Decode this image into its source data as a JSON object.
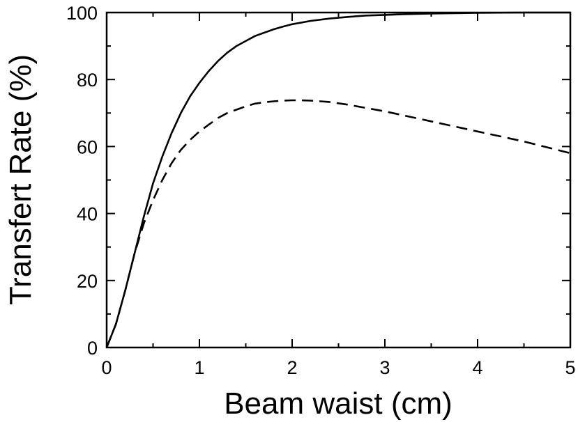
{
  "chart_data": {
    "type": "line",
    "title": "",
    "xlabel": "Beam waist (cm)",
    "ylabel": "Transfert Rate (%)",
    "xlim": [
      0,
      5
    ],
    "ylim": [
      0,
      100
    ],
    "x_ticks": [
      0,
      1,
      2,
      3,
      4,
      5
    ],
    "x_tick_labels": [
      "0",
      "1",
      "2",
      "3",
      "4",
      "5"
    ],
    "y_ticks": [
      0,
      20,
      40,
      60,
      80,
      100
    ],
    "y_tick_labels": [
      "0",
      "20",
      "40",
      "60",
      "80",
      "100"
    ],
    "grid": false,
    "legend": "none",
    "series": [
      {
        "style": "solid",
        "color": "#000000",
        "x": [
          0,
          0.1,
          0.2,
          0.3,
          0.4,
          0.5,
          0.6,
          0.7,
          0.8,
          0.9,
          1.0,
          1.1,
          1.2,
          1.3,
          1.4,
          1.5,
          1.6,
          1.7,
          1.8,
          1.9,
          2.0,
          2.2,
          2.4,
          2.6,
          2.8,
          3.0,
          3.2,
          3.5,
          4.0,
          4.5,
          5.0
        ],
        "y": [
          0,
          7,
          17,
          28,
          39,
          49,
          57,
          64,
          70,
          75,
          79,
          82.5,
          85.5,
          88,
          90,
          91.5,
          93,
          94,
          95,
          95.8,
          96.5,
          97.5,
          98.2,
          98.7,
          99.1,
          99.3,
          99.5,
          99.7,
          99.9,
          100,
          100
        ]
      },
      {
        "style": "dashed",
        "color": "#000000",
        "x": [
          0,
          0.1,
          0.2,
          0.3,
          0.4,
          0.5,
          0.6,
          0.7,
          0.8,
          0.9,
          1.0,
          1.1,
          1.2,
          1.3,
          1.4,
          1.5,
          1.6,
          1.7,
          1.8,
          1.9,
          2.0,
          2.1,
          2.2,
          2.4,
          2.6,
          2.8,
          3.0,
          3.5,
          4.0,
          4.5,
          5.0
        ],
        "y": [
          0,
          7,
          17,
          28,
          37,
          44,
          50,
          55,
          59,
          62,
          64.5,
          66.5,
          68.5,
          70,
          71,
          72,
          72.8,
          73.2,
          73.5,
          73.7,
          73.8,
          73.8,
          73.7,
          73.3,
          72.5,
          71.5,
          70.5,
          67.5,
          64.5,
          61.5,
          58
        ]
      }
    ]
  }
}
